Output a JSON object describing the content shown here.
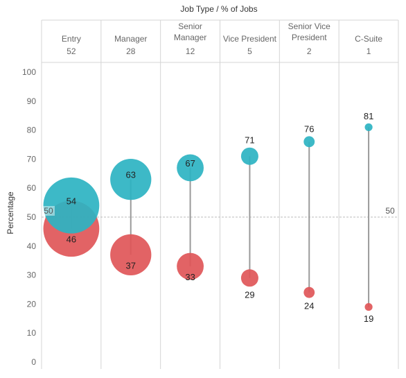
{
  "chart_data": {
    "type": "scatter",
    "header_title": "Job Type  /  % of Jobs",
    "ylabel": "Percentage",
    "ylim": [
      0,
      100
    ],
    "yticks": [
      0,
      10,
      20,
      30,
      40,
      50,
      60,
      70,
      80,
      90,
      100
    ],
    "categories": [
      {
        "name": [
          "Entry"
        ],
        "share": "52"
      },
      {
        "name": [
          "Manager"
        ],
        "share": "28"
      },
      {
        "name": [
          "Senior",
          "Manager"
        ],
        "share": "12"
      },
      {
        "name": [
          "Vice President"
        ],
        "share": "5"
      },
      {
        "name": [
          "Senior Vice",
          "President"
        ],
        "share": "2"
      },
      {
        "name": [
          "C-Suite"
        ],
        "share": "1"
      }
    ],
    "series": [
      {
        "color": "#2db3c2",
        "values": [
          54,
          63,
          67,
          71,
          76,
          81
        ]
      },
      {
        "color": "#e05658",
        "values": [
          46,
          37,
          33,
          29,
          24,
          19
        ]
      }
    ],
    "reference_line": {
      "value": 50,
      "label": "50"
    },
    "connector_color": "#9a9a9a",
    "grid_color": "#d4d4d4"
  }
}
